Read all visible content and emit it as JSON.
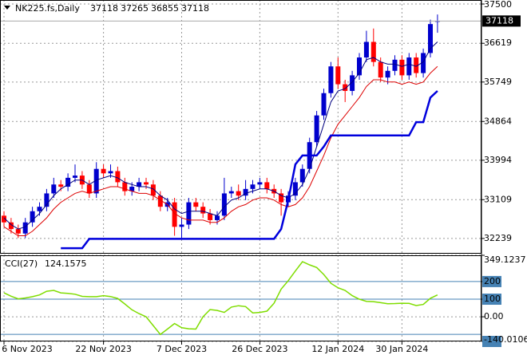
{
  "chart_data": [
    {
      "type": "candlestick",
      "title": "NK225.fs,Daily",
      "categories": [
        "6 Nov 2023",
        null,
        null,
        null,
        null,
        null,
        null,
        null,
        null,
        null,
        null,
        null,
        null,
        null,
        "22 Nov 2023",
        null,
        null,
        null,
        null,
        null,
        null,
        null,
        null,
        null,
        null,
        "7 Dec 2023",
        null,
        null,
        null,
        null,
        null,
        null,
        null,
        null,
        null,
        null,
        "26 Dec 2023",
        null,
        null,
        null,
        null,
        null,
        null,
        null,
        null,
        null,
        null,
        "12 Jan 2024",
        null,
        null,
        null,
        null,
        null,
        null,
        null,
        null,
        "30 Jan 2024",
        null,
        null,
        null,
        null,
        null
      ],
      "open": [
        32750,
        32600,
        32450,
        32350,
        32600,
        32850,
        32950,
        33250,
        33450,
        33400,
        33600,
        33650,
        33450,
        33250,
        33800,
        33700,
        33750,
        33500,
        33300,
        33400,
        33500,
        33450,
        33200,
        32950,
        33050,
        32500,
        32550,
        33050,
        32950,
        32800,
        32650,
        32750,
        33250,
        33300,
        33200,
        33350,
        33450,
        33500,
        33350,
        33250,
        33050,
        33200,
        33500,
        33800,
        34400,
        35000,
        35500,
        36100,
        35700,
        35550,
        35900,
        36300,
        36650,
        36200,
        35850,
        36000,
        36250,
        35900,
        36300,
        35950,
        36400,
        37118
      ],
      "high": [
        32850,
        32700,
        32550,
        32700,
        32950,
        33050,
        33350,
        33600,
        33550,
        33700,
        33900,
        33750,
        33550,
        33950,
        33900,
        33900,
        33850,
        33600,
        33500,
        33600,
        33600,
        33550,
        33300,
        33150,
        33150,
        32700,
        33150,
        33150,
        33050,
        32900,
        32850,
        33600,
        33400,
        33450,
        33550,
        33550,
        33600,
        33600,
        33450,
        33350,
        33300,
        33600,
        33900,
        34500,
        35100,
        35600,
        36200,
        36300,
        35800,
        36000,
        36400,
        36900,
        36950,
        36300,
        36100,
        36350,
        36350,
        36400,
        36400,
        36500,
        37150,
        37265
      ],
      "low": [
        32500,
        32350,
        32250,
        32250,
        32500,
        32750,
        32850,
        33150,
        33300,
        33300,
        33500,
        33350,
        33150,
        33150,
        33600,
        33600,
        33400,
        33200,
        33200,
        33300,
        33350,
        33100,
        32850,
        32850,
        32300,
        32250,
        32450,
        32850,
        32700,
        32550,
        32550,
        32650,
        33150,
        33100,
        33100,
        33250,
        33350,
        33250,
        33150,
        32750,
        32950,
        33100,
        33400,
        33700,
        34300,
        34900,
        35400,
        35600,
        35300,
        35450,
        35800,
        36200,
        36100,
        35750,
        35700,
        35900,
        35800,
        35800,
        35850,
        35850,
        36300,
        36855
      ],
      "close": [
        32600,
        32450,
        32350,
        32600,
        32850,
        32950,
        33250,
        33450,
        33400,
        33600,
        33650,
        33450,
        33250,
        33800,
        33700,
        33750,
        33500,
        33300,
        33400,
        33500,
        33450,
        33200,
        32950,
        33050,
        32500,
        32550,
        33050,
        32950,
        32800,
        32650,
        32750,
        33250,
        33300,
        33200,
        33350,
        33450,
        33500,
        33350,
        33250,
        33050,
        33200,
        33500,
        33800,
        34400,
        35000,
        35500,
        36100,
        35700,
        35550,
        35900,
        36300,
        36650,
        36200,
        35850,
        36000,
        36250,
        35900,
        36300,
        35950,
        36400,
        37050,
        37118
      ],
      "up_color": "#0000cd",
      "down_color": "#ff0000",
      "series": [
        {
          "color": "#000080",
          "width": 1,
          "values": [
            32700,
            32550,
            32450,
            32500,
            32650,
            32800,
            33000,
            33200,
            33350,
            33450,
            33550,
            33550,
            33450,
            33550,
            33600,
            33650,
            33600,
            33500,
            33450,
            33400,
            33400,
            33350,
            33200,
            33100,
            32900,
            32800,
            32850,
            32850,
            32850,
            32800,
            32750,
            32950,
            33100,
            33150,
            33250,
            33300,
            33350,
            33350,
            33300,
            33200,
            33150,
            33250,
            33450,
            33800,
            34300,
            34800,
            35300,
            35550,
            35600,
            35750,
            35950,
            36250,
            36300,
            36200,
            36150,
            36150,
            36100,
            36150,
            36100,
            36200,
            36500,
            36650
          ]
        },
        {
          "color": "#dd0000",
          "width": 1,
          "values": [
            32500,
            32400,
            32300,
            32300,
            32400,
            32550,
            32700,
            32900,
            33050,
            33150,
            33250,
            33300,
            33250,
            33300,
            33350,
            33400,
            33400,
            33350,
            33300,
            33250,
            33250,
            33200,
            33100,
            33000,
            32800,
            32700,
            32650,
            32650,
            32650,
            32600,
            32600,
            32700,
            32850,
            32950,
            33000,
            33100,
            33150,
            33150,
            33100,
            33000,
            32950,
            33000,
            33150,
            33400,
            33750,
            34100,
            34500,
            34800,
            35000,
            35200,
            35400,
            35650,
            35800,
            35800,
            35750,
            35750,
            35700,
            35750,
            35700,
            35750,
            35950,
            36100
          ]
        },
        {
          "color": "#0000dd",
          "width": 2.5,
          "values": [
            null,
            null,
            null,
            null,
            null,
            null,
            null,
            null,
            32020,
            32020,
            32020,
            32020,
            32230,
            32230,
            32230,
            32230,
            32230,
            32230,
            32230,
            32230,
            32230,
            32230,
            32230,
            32230,
            32230,
            32230,
            32230,
            32230,
            32230,
            32230,
            32230,
            32230,
            32230,
            32230,
            32230,
            32230,
            32230,
            32230,
            32230,
            32450,
            33100,
            33900,
            34100,
            34100,
            34100,
            34300,
            34550,
            34550,
            34550,
            34550,
            34550,
            34550,
            34550,
            34550,
            34550,
            34550,
            34550,
            34550,
            34850,
            34850,
            35400,
            35550
          ]
        }
      ],
      "ylim": [
        31897,
        37590
      ],
      "yticks": [
        37500,
        36619,
        35749,
        34864,
        33994,
        33109,
        32239
      ],
      "grid": true
    },
    {
      "type": "line",
      "title": "CCI(27)",
      "series": [
        {
          "color": "#7fdd00",
          "values": [
            136,
            117,
            102,
            107,
            114,
            124,
            145,
            150,
            136,
            133,
            128,
            116,
            114,
            114,
            120,
            115,
            104,
            73,
            40,
            18,
            0,
            -50,
            -100,
            -70,
            -38,
            -62,
            -68,
            -70,
            0,
            41,
            36,
            25,
            55,
            63,
            58,
            22,
            25,
            32,
            77,
            157,
            205,
            260,
            313,
            295,
            280,
            240,
            190,
            165,
            150,
            120,
            100,
            88,
            86,
            80,
            74,
            75,
            77,
            76,
            64,
            70,
            105,
            124.1575
          ]
        }
      ],
      "levels": [
        200,
        100,
        -100
      ],
      "level_color": "#4682b4",
      "ylim": [
        -140.0106,
        349.1237
      ],
      "yticks": [
        349.1237,
        200,
        100,
        {
          "value": 0,
          "label": "0.00"
        },
        -140.0106
      ],
      "grid": true
    }
  ]
}
